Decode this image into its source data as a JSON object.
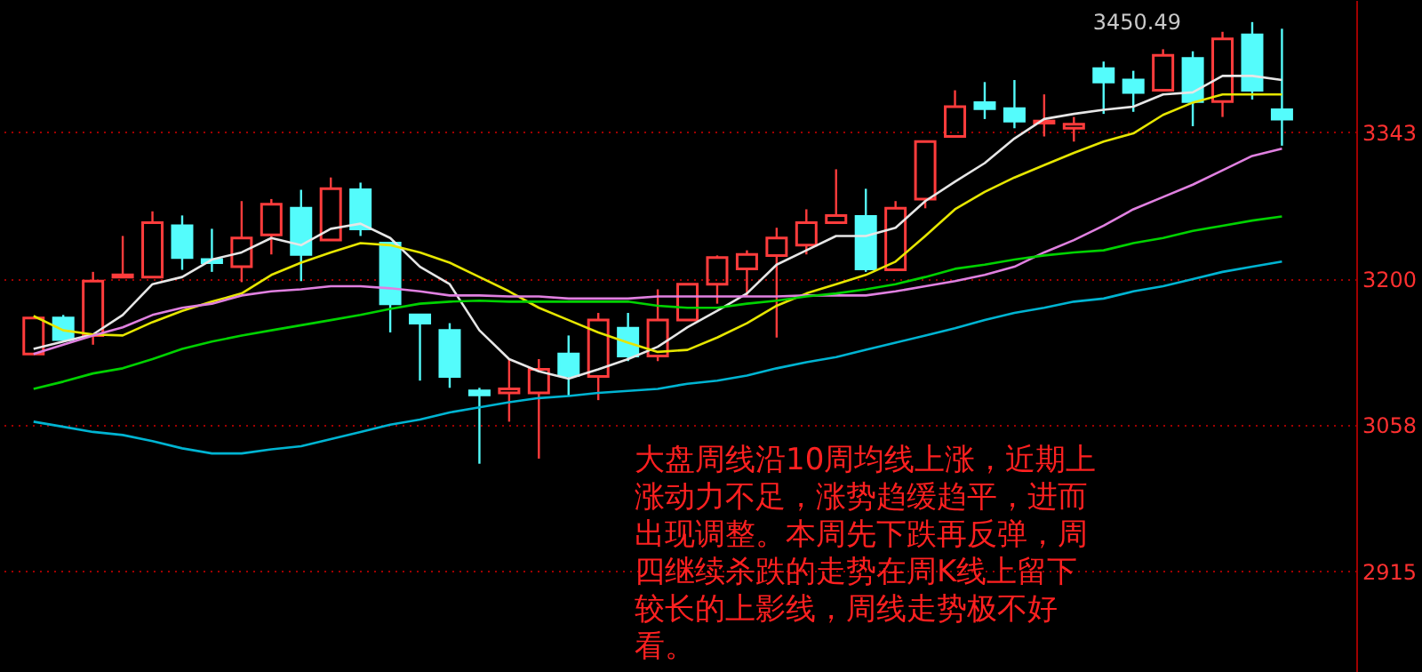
{
  "chart_data": {
    "type": "candlestick",
    "categories": [
      null,
      null,
      null,
      null,
      null,
      null,
      null,
      null,
      null,
      null,
      null,
      null,
      null,
      null,
      null,
      null,
      null,
      null,
      null,
      null,
      null,
      null,
      null,
      null,
      null,
      null,
      null,
      null,
      null,
      null,
      null,
      null,
      null,
      null,
      null,
      null,
      null,
      null,
      null,
      null,
      null,
      null,
      null
    ],
    "ohlc": [
      [
        3127,
        3162,
        3127,
        3162
      ],
      [
        3162,
        3165,
        3141,
        3141
      ],
      [
        3145,
        3207,
        3136,
        3198
      ],
      [
        3202,
        3242,
        3202,
        3204
      ],
      [
        3202,
        3266,
        3202,
        3255
      ],
      [
        3252,
        3262,
        3209,
        3221
      ],
      [
        3219,
        3249,
        3207,
        3216
      ],
      [
        3212,
        3276,
        3197,
        3240
      ],
      [
        3243,
        3278,
        3224,
        3273
      ],
      [
        3269,
        3287,
        3198,
        3224
      ],
      [
        3238,
        3299,
        3238,
        3288
      ],
      [
        3287,
        3294,
        3242,
        3249
      ],
      [
        3235,
        3235,
        3148,
        3176
      ],
      [
        3165,
        3165,
        3101,
        3157
      ],
      [
        3150,
        3157,
        3094,
        3105
      ],
      [
        3091,
        3094,
        3020,
        3087
      ],
      [
        3089,
        3122,
        3061,
        3093
      ],
      [
        3089,
        3122,
        3025,
        3112
      ],
      [
        3127,
        3145,
        3086,
        3106
      ],
      [
        3105,
        3167,
        3082,
        3160
      ],
      [
        3152,
        3167,
        3120,
        3125
      ],
      [
        3125,
        3190,
        3120,
        3160
      ],
      [
        3160,
        3195,
        3160,
        3195
      ],
      [
        3195,
        3223,
        3176,
        3221
      ],
      [
        3210,
        3228,
        3183,
        3224
      ],
      [
        3223,
        3250,
        3143,
        3240
      ],
      [
        3233,
        3268,
        3224,
        3255
      ],
      [
        3255,
        3307,
        3255,
        3262
      ],
      [
        3261,
        3288,
        3207,
        3210
      ],
      [
        3209,
        3276,
        3209,
        3269
      ],
      [
        3278,
        3334,
        3269,
        3334
      ],
      [
        3339,
        3384,
        3339,
        3368
      ],
      [
        3372,
        3392,
        3356,
        3366
      ],
      [
        3366,
        3394,
        3347,
        3354
      ],
      [
        3352,
        3380,
        3339,
        3354
      ],
      [
        3347,
        3358,
        3334,
        3351
      ],
      [
        3405,
        3412,
        3361,
        3392
      ],
      [
        3394,
        3403,
        3363,
        3382
      ],
      [
        3384,
        3424,
        3384,
        3418
      ],
      [
        3415,
        3422,
        3349,
        3373
      ],
      [
        3373,
        3441,
        3358,
        3434
      ],
      [
        3438,
        3450.49,
        3375,
        3384
      ],
      [
        3365,
        3444,
        3330,
        3356
      ]
    ],
    "colors": [
      "#ff3c3c",
      "#54fcfc",
      "#ff3c3c",
      "#ff3c3c",
      "#ff3c3c",
      "#54fcfc",
      "#54fcfc",
      "#ff3c3c",
      "#ff3c3c",
      "#54fcfc",
      "#ff3c3c",
      "#54fcfc",
      "#54fcfc",
      "#54fcfc",
      "#54fcfc",
      "#54fcfc",
      "#ff3c3c",
      "#ff3c3c",
      "#54fcfc",
      "#ff3c3c",
      "#54fcfc",
      "#ff3c3c",
      "#ff3c3c",
      "#ff3c3c",
      "#ff3c3c",
      "#ff3c3c",
      "#ff3c3c",
      "#ff3c3c",
      "#54fcfc",
      "#ff3c3c",
      "#ff3c3c",
      "#ff3c3c",
      "#54fcfc",
      "#54fcfc",
      "#ff3c3c",
      "#ff3c3c",
      "#54fcfc",
      "#54fcfc",
      "#ff3c3c",
      "#54fcfc",
      "#ff3c3c",
      "#54fcfc",
      "#54fcfc"
    ],
    "series": [
      {
        "type": "line",
        "color": "#e6e6e6",
        "values": [
          3132,
          3139,
          3146,
          3165,
          3195,
          3202,
          3219,
          3226,
          3240,
          3233,
          3249,
          3254,
          3240,
          3212,
          3195,
          3150,
          3122,
          3110,
          3103,
          3112,
          3122,
          3134,
          3153,
          3169,
          3186,
          3214,
          3228,
          3242,
          3242,
          3250,
          3276,
          3295,
          3313,
          3337,
          3356,
          3361,
          3365,
          3368,
          3380,
          3382,
          3398,
          3398,
          3394
        ]
      },
      {
        "type": "line",
        "color": "#e6e600",
        "values": [
          3164,
          3150,
          3146,
          3145,
          3158,
          3169,
          3178,
          3186,
          3204,
          3216,
          3226,
          3235,
          3233,
          3226,
          3216,
          3202,
          3188,
          3172,
          3160,
          3148,
          3138,
          3129,
          3131,
          3143,
          3157,
          3174,
          3186,
          3195,
          3204,
          3217,
          3242,
          3268,
          3285,
          3299,
          3311,
          3323,
          3334,
          3342,
          3360,
          3372,
          3380,
          3380,
          3380
        ]
      },
      {
        "type": "line",
        "color": "#e080e0",
        "values": [
          3127,
          3136,
          3145,
          3153,
          3165,
          3172,
          3176,
          3184,
          3188,
          3190,
          3193,
          3193,
          3191,
          3188,
          3184,
          3184,
          3183,
          3183,
          3181,
          3181,
          3181,
          3183,
          3183,
          3183,
          3183,
          3183,
          3184,
          3184,
          3184,
          3188,
          3193,
          3198,
          3204,
          3212,
          3226,
          3238,
          3252,
          3268,
          3280,
          3292,
          3306,
          3320,
          3327
        ]
      },
      {
        "type": "line",
        "color": "#00d200",
        "values": [
          3093,
          3100,
          3108,
          3113,
          3122,
          3132,
          3139,
          3145,
          3150,
          3155,
          3160,
          3165,
          3171,
          3176,
          3178,
          3179,
          3178,
          3178,
          3178,
          3178,
          3178,
          3174,
          3172,
          3172,
          3176,
          3179,
          3183,
          3186,
          3190,
          3195,
          3202,
          3210,
          3214,
          3219,
          3223,
          3226,
          3228,
          3235,
          3240,
          3247,
          3252,
          3257,
          3261
        ]
      },
      {
        "type": "line",
        "color": "#00b4d2",
        "values": [
          3061,
          3056,
          3051,
          3048,
          3042,
          3035,
          3030,
          3030,
          3034,
          3037,
          3044,
          3051,
          3058,
          3063,
          3070,
          3075,
          3080,
          3084,
          3086,
          3089,
          3091,
          3093,
          3098,
          3101,
          3106,
          3113,
          3119,
          3124,
          3131,
          3138,
          3145,
          3152,
          3160,
          3167,
          3172,
          3178,
          3181,
          3188,
          3193,
          3200,
          3207,
          3212,
          3217
        ]
      }
    ],
    "ylim": [
      2817,
      3472
    ],
    "yticks": [
      3343,
      3200,
      3058,
      2915
    ],
    "line_style": "solid",
    "grid": "y",
    "tick_labels": "y",
    "annotations": [
      "3450.49",
      "大盘周线沿10周均线上涨，近期上涨动力不足，涨势趋缓趋平，进而出现调整。本周先下跌再反弹，周四继续杀跌的走势在周K线上留下较长的上影线，周线走势极不好看。"
    ]
  }
}
